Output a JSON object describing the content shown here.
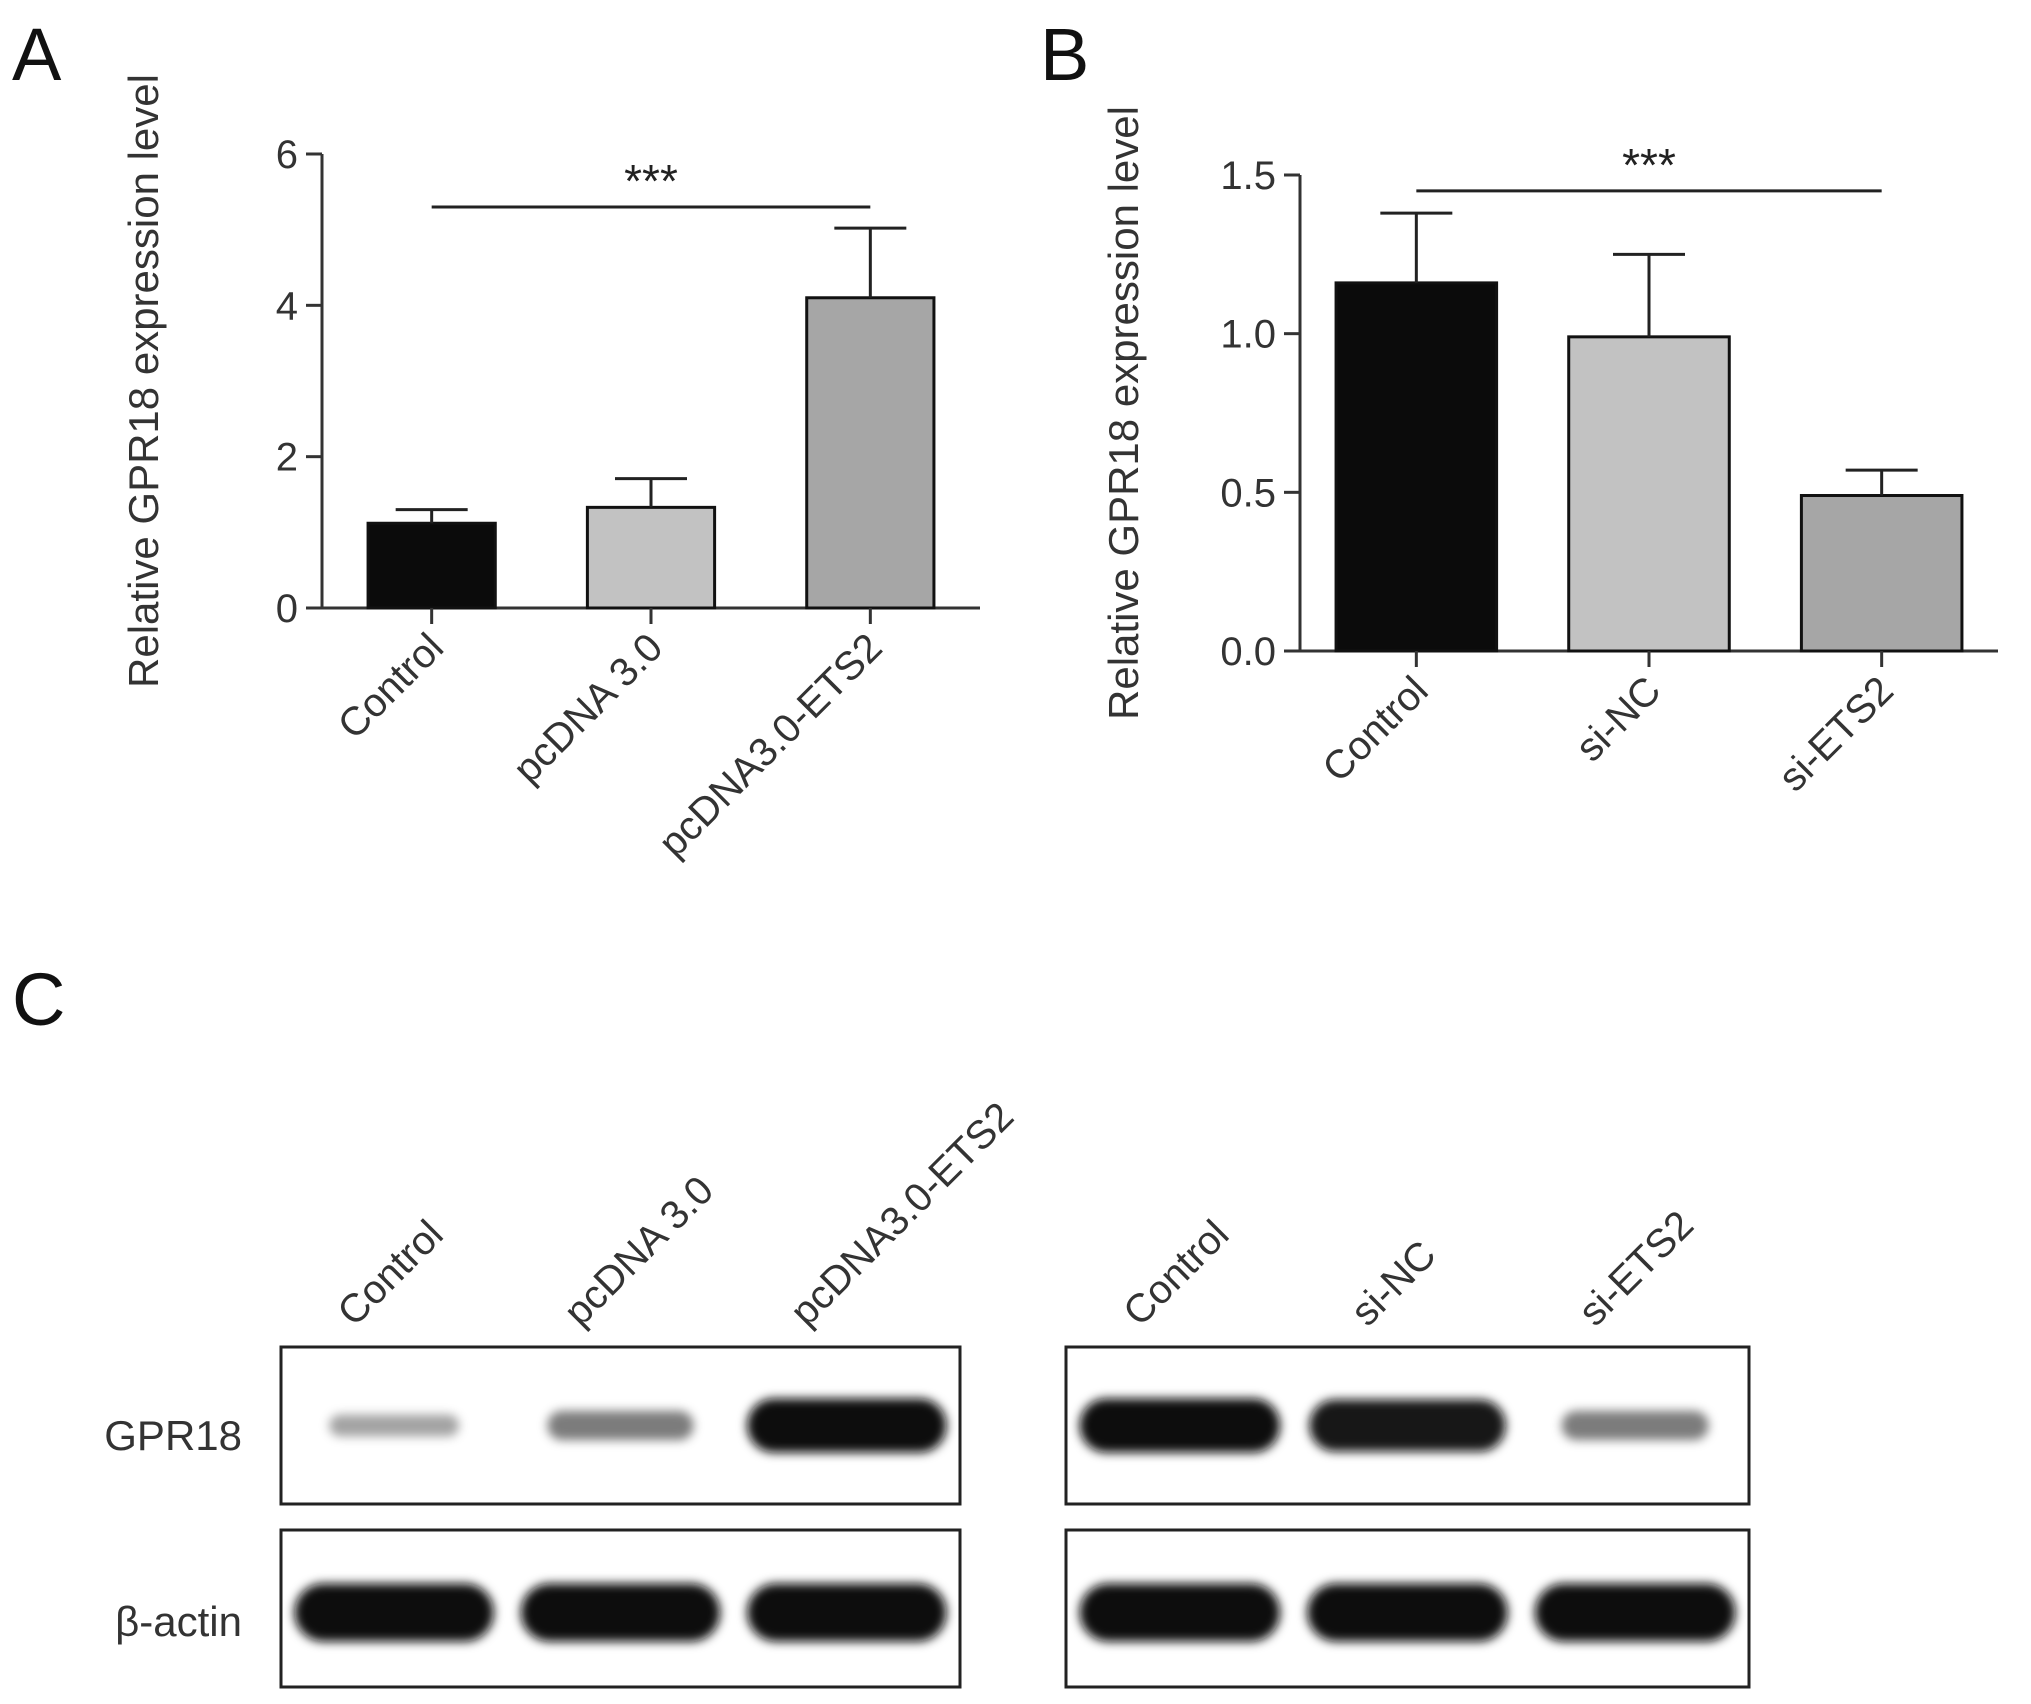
{
  "panels": {
    "a": {
      "letter": "A"
    },
    "b": {
      "letter": "B"
    },
    "c": {
      "letter": "C"
    }
  },
  "chart_data": [
    {
      "panel": "A",
      "type": "bar",
      "categories": [
        "Control",
        "pcDNA 3.0",
        "pcDNA3.0-ETS2"
      ],
      "values": [
        1.12,
        1.33,
        4.1
      ],
      "errors": [
        0.18,
        0.38,
        0.92
      ],
      "colors": [
        "#0b0b0b",
        "#c2c2c2",
        "#a6a6a6"
      ],
      "ylabel": "Relative GPR18 expression level",
      "ylim": [
        0,
        6
      ],
      "yticks": [
        0,
        2,
        4,
        6
      ],
      "ytick_labels": [
        "0",
        "2",
        "4",
        "6"
      ],
      "significance": {
        "from": 0,
        "to": 2,
        "y": 5.3,
        "label": "***"
      }
    },
    {
      "panel": "B",
      "type": "bar",
      "categories": [
        "Control",
        "si-NC",
        "si-ETS2"
      ],
      "values": [
        1.16,
        0.99,
        0.49
      ],
      "errors": [
        0.22,
        0.26,
        0.08
      ],
      "colors": [
        "#0b0b0b",
        "#c2c2c2",
        "#a6a6a6"
      ],
      "ylabel": "Relative GPR18 expression level",
      "ylim": [
        0,
        1.5
      ],
      "yticks": [
        0,
        0.5,
        1.0,
        1.5
      ],
      "ytick_labels": [
        "0.0",
        "0.5",
        "1.0",
        "1.5"
      ],
      "significance": {
        "from": 0,
        "to": 2,
        "y": 1.45,
        "label": "***"
      }
    }
  ],
  "western_blot": {
    "row_labels": [
      "GPR18",
      "β-actin"
    ],
    "blots": [
      {
        "lanes": [
          "Control",
          "pcDNA 3.0",
          "pcDNA3.0-ETS2"
        ],
        "band_intensity": {
          "GPR18": [
            0.15,
            0.35,
            1.0
          ],
          "β-actin": [
            1.0,
            1.0,
            1.0
          ]
        }
      },
      {
        "lanes": [
          "Control",
          "si-NC",
          "si-ETS2"
        ],
        "band_intensity": {
          "GPR18": [
            1.0,
            0.95,
            0.35
          ],
          "β-actin": [
            1.0,
            1.0,
            1.0
          ]
        }
      }
    ]
  },
  "colors": {
    "band": "#0a0a0a",
    "axis": "#333333",
    "frame": "#222222"
  }
}
